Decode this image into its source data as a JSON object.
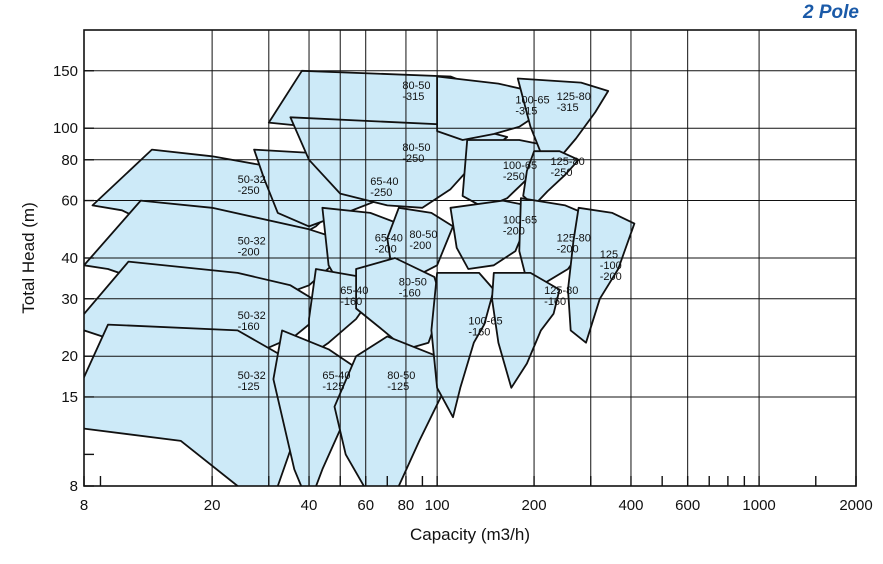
{
  "corner_label": "2 Pole",
  "chart_data": {
    "type": "area",
    "title": "",
    "xlabel": "Capacity (m3/h)",
    "ylabel": "Total Head (m)",
    "xscale": "log",
    "yscale": "log",
    "xlim": [
      8,
      2000
    ],
    "ylim": [
      8,
      200
    ],
    "grid": true,
    "x_tick_labels": [
      "8",
      "20",
      "40",
      "60",
      "80",
      "100",
      "200",
      "400",
      "600",
      "1000",
      "2000"
    ],
    "x_tick_values": [
      8,
      20,
      40,
      60,
      80,
      100,
      200,
      400,
      600,
      1000,
      2000
    ],
    "x_minor_ticks": [
      9,
      30,
      50,
      70,
      90,
      300,
      500,
      700,
      800,
      900,
      1500
    ],
    "y_tick_labels": [
      "8",
      "15",
      "20",
      "30",
      "40",
      "60",
      "80",
      "100",
      "150"
    ],
    "y_tick_values": [
      8,
      15,
      20,
      30,
      40,
      60,
      80,
      100,
      150
    ],
    "y_minor_ticks": [
      10
    ],
    "fill_color": "#cdeaf8",
    "series": [
      {
        "name": "50-32 -250",
        "label": [
          "50-32",
          "-250"
        ],
        "label_at": [
          24,
          68
        ],
        "points": [
          [
            8.5,
            58
          ],
          [
            13,
            86
          ],
          [
            20,
            82
          ],
          [
            36,
            74
          ],
          [
            52,
            61
          ],
          [
            42,
            50
          ],
          [
            28,
            40
          ],
          [
            18,
            43
          ],
          [
            10.5,
            56
          ]
        ]
      },
      {
        "name": "50-32 -200",
        "label": [
          "50-32",
          "-200"
        ],
        "label_at": [
          24,
          44
        ],
        "points": [
          [
            8,
            38
          ],
          [
            12,
            60
          ],
          [
            20,
            57
          ],
          [
            40,
            49
          ],
          [
            56,
            44
          ],
          [
            40,
            33
          ],
          [
            28,
            29
          ],
          [
            16,
            31
          ],
          [
            9.5,
            37
          ]
        ]
      },
      {
        "name": "50-32 -160",
        "label": [
          "50-32",
          "-160"
        ],
        "label_at": [
          24,
          26
        ],
        "points": [
          [
            7.5,
            25
          ],
          [
            11,
            39
          ],
          [
            24,
            36
          ],
          [
            35,
            33
          ],
          [
            46,
            28
          ],
          [
            36,
            23
          ],
          [
            26,
            20
          ],
          [
            14,
            20
          ],
          [
            8,
            24
          ]
        ]
      },
      {
        "name": "50-32 -125",
        "label": [
          "50-32",
          "-125"
        ],
        "label_at": [
          24,
          17
        ],
        "points": [
          [
            7.5,
            15
          ],
          [
            9.5,
            25
          ],
          [
            24,
            24
          ],
          [
            40,
            18
          ],
          [
            38,
            13
          ],
          [
            32,
            8
          ],
          [
            29,
            7
          ],
          [
            24,
            8
          ],
          [
            16,
            11
          ],
          [
            8,
            12
          ]
        ]
      },
      {
        "name": "65-40 -250",
        "label": [
          "65-40",
          "-250"
        ],
        "label_at": [
          62,
          67
        ],
        "points": [
          [
            27,
            86
          ],
          [
            50,
            83
          ],
          [
            78,
            77
          ],
          [
            68,
            61
          ],
          [
            52,
            55
          ],
          [
            40,
            50
          ],
          [
            32,
            55
          ],
          [
            29,
            70
          ]
        ]
      },
      {
        "name": "65-40 -200",
        "label": [
          "65-40",
          "-200"
        ],
        "label_at": [
          64,
          45
        ],
        "points": [
          [
            44,
            57
          ],
          [
            62,
            55
          ],
          [
            80,
            50
          ],
          [
            72,
            40
          ],
          [
            60,
            35
          ],
          [
            50,
            33
          ],
          [
            46,
            38
          ]
        ]
      },
      {
        "name": "65-40 -160",
        "label": [
          "65-40",
          "-160"
        ],
        "label_at": [
          50,
          31
        ],
        "points": [
          [
            42,
            37
          ],
          [
            58,
            35
          ],
          [
            62,
            30
          ],
          [
            56,
            26
          ],
          [
            46,
            22
          ],
          [
            40,
            20
          ],
          [
            40,
            26
          ]
        ]
      },
      {
        "name": "65-40 -125",
        "label": [
          "65-40",
          "-125"
        ],
        "label_at": [
          44,
          17
        ],
        "points": [
          [
            33,
            24
          ],
          [
            46,
            21
          ],
          [
            58,
            18
          ],
          [
            52,
            13
          ],
          [
            44,
            9
          ],
          [
            40,
            7
          ],
          [
            36,
            9
          ],
          [
            31,
            17
          ]
        ]
      },
      {
        "name": "80-50 -315",
        "label": [
          "80-50",
          "-315"
        ],
        "label_at": [
          78,
          132
        ],
        "points": [
          [
            30,
            104
          ],
          [
            38,
            150
          ],
          [
            110,
            144
          ],
          [
            165,
            123
          ],
          [
            125,
            104
          ],
          [
            95,
            90
          ],
          [
            75,
            92
          ],
          [
            55,
            98
          ]
        ]
      },
      {
        "name": "80-50 -250",
        "label": [
          "80-50",
          "-250"
        ],
        "label_at": [
          78,
          85
        ],
        "points": [
          [
            35,
            108
          ],
          [
            120,
            102
          ],
          [
            165,
            94
          ],
          [
            130,
            78
          ],
          [
            110,
            65
          ],
          [
            90,
            57
          ],
          [
            70,
            58
          ],
          [
            50,
            63
          ],
          [
            40,
            80
          ]
        ]
      },
      {
        "name": "80-50 -200",
        "label": [
          "80-50",
          "-200"
        ],
        "label_at": [
          82,
          46
        ],
        "points": [
          [
            76,
            57
          ],
          [
            96,
            55
          ],
          [
            112,
            50
          ],
          [
            100,
            38
          ],
          [
            90,
            36
          ],
          [
            72,
            38
          ],
          [
            70,
            46
          ]
        ]
      },
      {
        "name": "80-50 -160",
        "label": [
          "80-50",
          "-160"
        ],
        "label_at": [
          76,
          33
        ],
        "points": [
          [
            56,
            37
          ],
          [
            74,
            40
          ],
          [
            98,
            35
          ],
          [
            104,
            29
          ],
          [
            94,
            22
          ],
          [
            80,
            21
          ],
          [
            68,
            24
          ],
          [
            56,
            28
          ]
        ]
      },
      {
        "name": "80-50 -125",
        "label": [
          "80-50",
          "-125"
        ],
        "label_at": [
          70,
          17
        ],
        "points": [
          [
            56,
            20
          ],
          [
            70,
            23
          ],
          [
            100,
            20
          ],
          [
            106,
            16
          ],
          [
            88,
            11
          ],
          [
            76,
            8
          ],
          [
            64,
            7
          ],
          [
            52,
            10
          ],
          [
            48,
            14
          ]
        ]
      },
      {
        "name": "100-65 -315",
        "label": [
          "100-65",
          "-315"
        ],
        "label_at": [
          175,
          119
        ],
        "points": [
          [
            100,
            144
          ],
          [
            155,
            137
          ],
          [
            210,
            128
          ],
          [
            205,
            110
          ],
          [
            180,
            101
          ],
          [
            150,
            96
          ],
          [
            120,
            92
          ],
          [
            100,
            98
          ]
        ]
      },
      {
        "name": "100-65 -250",
        "label": [
          "100-65",
          "-250"
        ],
        "label_at": [
          160,
          75
        ],
        "points": [
          [
            124,
            92
          ],
          [
            180,
            92
          ],
          [
            225,
            88
          ],
          [
            205,
            75
          ],
          [
            185,
            68
          ],
          [
            165,
            61
          ],
          [
            140,
            57
          ],
          [
            120,
            62
          ]
        ]
      },
      {
        "name": "100-65 -200",
        "label": [
          "100-65",
          "-200"
        ],
        "label_at": [
          160,
          51
        ],
        "points": [
          [
            110,
            57
          ],
          [
            160,
            60
          ],
          [
            190,
            58
          ],
          [
            185,
            48
          ],
          [
            175,
            42
          ],
          [
            150,
            38
          ],
          [
            125,
            37
          ],
          [
            115,
            43
          ]
        ]
      },
      {
        "name": "100-65 -160",
        "label": [
          "100-65",
          "-160"
        ],
        "label_at": [
          125,
          25
        ],
        "points": [
          [
            100,
            36
          ],
          [
            135,
            36
          ],
          [
            150,
            32
          ],
          [
            140,
            25
          ],
          [
            130,
            22
          ],
          [
            118,
            16
          ],
          [
            112,
            13
          ],
          [
            100,
            16
          ],
          [
            96,
            24
          ]
        ]
      },
      {
        "name": "125-80 -315",
        "label": [
          "125-80",
          "-315"
        ],
        "label_at": [
          235,
          122
        ],
        "points": [
          [
            178,
            142
          ],
          [
            280,
            138
          ],
          [
            340,
            130
          ],
          [
            310,
            112
          ],
          [
            270,
            93
          ],
          [
            240,
            81
          ],
          [
            210,
            84
          ],
          [
            195,
            101
          ]
        ]
      },
      {
        "name": "125-80 -250",
        "label": [
          "125-80",
          "-250"
        ],
        "label_at": [
          225,
          77
        ],
        "points": [
          [
            200,
            85
          ],
          [
            240,
            85
          ],
          [
            275,
            80
          ],
          [
            250,
            72
          ],
          [
            220,
            64
          ],
          [
            200,
            58
          ],
          [
            185,
            62
          ],
          [
            190,
            74
          ]
        ]
      },
      {
        "name": "125-80 -200",
        "label": [
          "125-80",
          "-200"
        ],
        "label_at": [
          235,
          45
        ],
        "points": [
          [
            182,
            61
          ],
          [
            250,
            58
          ],
          [
            310,
            53
          ],
          [
            280,
            42
          ],
          [
            255,
            37
          ],
          [
            210,
            33
          ],
          [
            190,
            34
          ],
          [
            180,
            42
          ]
        ]
      },
      {
        "name": "125-80 -160",
        "label": [
          "125-80",
          "-160"
        ],
        "label_at": [
          215,
          31
        ],
        "points": [
          [
            150,
            36
          ],
          [
            195,
            36
          ],
          [
            240,
            32
          ],
          [
            230,
            27
          ],
          [
            210,
            24
          ],
          [
            190,
            19
          ],
          [
            170,
            16
          ],
          [
            155,
            22
          ],
          [
            148,
            30
          ]
        ]
      },
      {
        "name": "125 -100 -200",
        "label": [
          "125",
          "-100",
          "-200"
        ],
        "label_at": [
          320,
          40
        ],
        "points": [
          [
            275,
            57
          ],
          [
            350,
            55
          ],
          [
            410,
            51
          ],
          [
            365,
            37
          ],
          [
            320,
            30
          ],
          [
            290,
            22
          ],
          [
            260,
            24
          ],
          [
            255,
            32
          ],
          [
            265,
            45
          ]
        ]
      }
    ]
  }
}
